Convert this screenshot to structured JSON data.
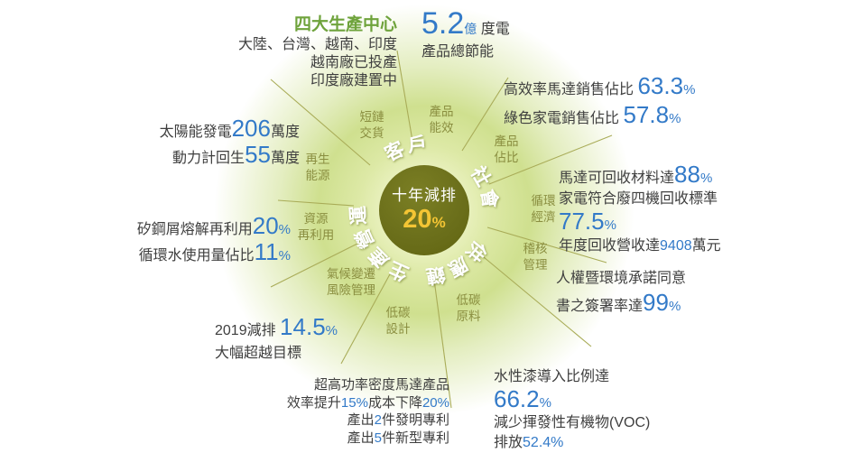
{
  "center": {
    "title": "十年減排",
    "value": "20",
    "unit": "%"
  },
  "categories": [
    "客戶",
    "社會",
    "供應鏈",
    "生產營運"
  ],
  "spokes": [
    {
      "label": "短鏈\n交貨"
    },
    {
      "label": "產品\n能效"
    },
    {
      "label": "產品\n佔比"
    },
    {
      "label": "循環\n經濟"
    },
    {
      "label": "稽核\n管理"
    },
    {
      "label": "低碳\n原料"
    },
    {
      "label": "低碳\n設計"
    },
    {
      "label": "氣候變遷\n風險管理"
    },
    {
      "label": "資源\n再利用"
    },
    {
      "label": "再生\n能源"
    }
  ],
  "colors": {
    "accent_blue": "#337ac8",
    "title_green": "#6fa33c",
    "hub_olive": "#6a6e1a",
    "gold": "#f4c534",
    "spoke_olive": "#8a8e40"
  },
  "callouts": {
    "prod_centers": {
      "title": "四大生產中心",
      "lines": [
        "大陸、台灣、越南、印度",
        "越南廠已投產",
        "印度廠建置中"
      ]
    },
    "energy_saving": {
      "line1": [
        {
          "t": "5.2",
          "c": "huge"
        },
        {
          "t": "億",
          "c": "b-sm"
        },
        {
          "t": " 度電"
        }
      ],
      "line2": "產品總節能"
    },
    "motor_sales": {
      "lines": [
        [
          {
            "t": "高效率馬達銷售佔比 "
          },
          {
            "t": "63.3",
            "c": "n"
          },
          {
            "t": "%",
            "c": "n-sm"
          }
        ],
        [
          {
            "t": "綠色家電銷售佔比 "
          },
          {
            "t": "57.8",
            "c": "n"
          },
          {
            "t": "%",
            "c": "n-sm"
          }
        ]
      ]
    },
    "recycling": {
      "lines": [
        [
          {
            "t": "馬達可回收材料達"
          },
          {
            "t": "88",
            "c": "n"
          },
          {
            "t": "%",
            "c": "n-sm"
          }
        ],
        [
          {
            "t": "家電符合廢四機回收標準"
          }
        ],
        [
          {
            "t": "77.5",
            "c": "n"
          },
          {
            "t": "%",
            "c": "n-sm"
          }
        ],
        [
          {
            "t": "年度回收營收達"
          },
          {
            "t": "9408",
            "c": "b"
          },
          {
            "t": "萬元"
          }
        ]
      ]
    },
    "human_rights": {
      "lines": [
        [
          {
            "t": "人權暨環境承諾同意"
          }
        ],
        [
          {
            "t": "書之簽署率達"
          },
          {
            "t": "99",
            "c": "n"
          },
          {
            "t": "%",
            "c": "n-sm"
          }
        ]
      ]
    },
    "water_paint": {
      "lines": [
        [
          {
            "t": "水性漆導入比例達"
          }
        ],
        [
          {
            "t": "66.2",
            "c": "n"
          },
          {
            "t": "%",
            "c": "n-sm"
          }
        ],
        [
          {
            "t": "減少揮發性有機物(VOC)"
          }
        ],
        [
          {
            "t": "排放"
          },
          {
            "t": "52.4%",
            "c": "b"
          }
        ]
      ]
    },
    "motor_rd": {
      "lines": [
        [
          {
            "t": "超高功率密度馬達產品"
          }
        ],
        [
          {
            "t": "效率提升"
          },
          {
            "t": "15%",
            "c": "b"
          },
          {
            "t": "成本下降"
          },
          {
            "t": "20%",
            "c": "b"
          }
        ],
        [
          {
            "t": "產出"
          },
          {
            "t": "2",
            "c": "b"
          },
          {
            "t": "件發明專利"
          }
        ],
        [
          {
            "t": "產出"
          },
          {
            "t": "5",
            "c": "b"
          },
          {
            "t": "件新型專利"
          }
        ]
      ]
    },
    "reduction_2019": {
      "lines": [
        [
          {
            "t": "2019減排 "
          },
          {
            "t": "14.5",
            "c": "n"
          },
          {
            "t": "%",
            "c": "n-sm"
          }
        ],
        [
          {
            "t": "大幅超越目標"
          }
        ]
      ]
    },
    "steel_recycle": {
      "lines": [
        [
          {
            "t": "矽鋼屑熔解再利用"
          },
          {
            "t": "20",
            "c": "n"
          },
          {
            "t": "%",
            "c": "n-sm"
          }
        ],
        [
          {
            "t": "循環水使用量佔比"
          },
          {
            "t": "11",
            "c": "n"
          },
          {
            "t": "%",
            "c": "n-sm"
          }
        ]
      ]
    },
    "solar": {
      "lines": [
        [
          {
            "t": "太陽能發電"
          },
          {
            "t": "206",
            "c": "n"
          },
          {
            "t": "萬度"
          }
        ],
        [
          {
            "t": "動力計回生"
          },
          {
            "t": "55",
            "c": "n"
          },
          {
            "t": "萬度"
          }
        ]
      ]
    }
  }
}
